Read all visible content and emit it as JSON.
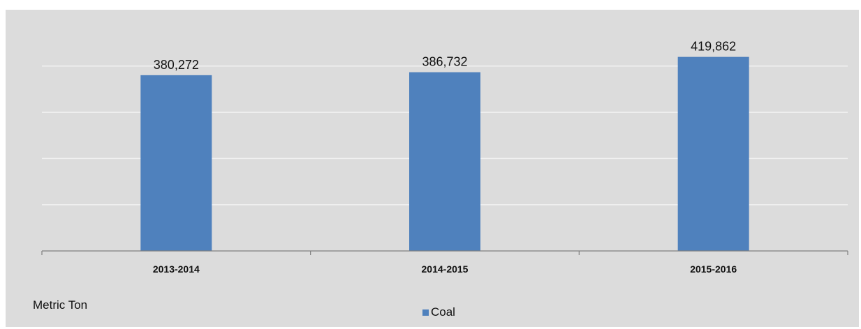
{
  "chart_data": {
    "type": "bar",
    "categories": [
      "2013-2014",
      "2014-2015",
      "2015-2016"
    ],
    "series": [
      {
        "name": "Coal",
        "values": [
          380272,
          386732,
          419862
        ],
        "data_labels": [
          "380,272",
          "386,732",
          "419,862"
        ],
        "color": "#4f81bd"
      }
    ],
    "ylim": [
      0,
      500000
    ],
    "grid": true,
    "legend_position": "bottom-center",
    "unit_label": "Metric Ton"
  }
}
